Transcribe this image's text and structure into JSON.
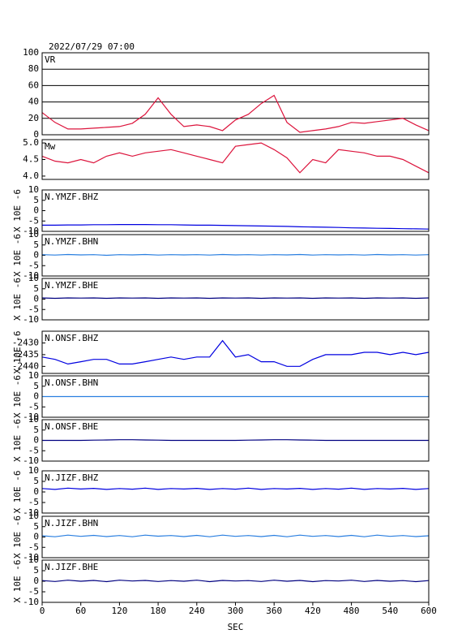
{
  "chart_data": [
    {
      "type": "line",
      "title": "2022/07/29 07:00",
      "label": "VR",
      "color": "#dc143c",
      "grid": true,
      "xlim": [
        0,
        600
      ],
      "x": [
        0,
        20,
        40,
        60,
        80,
        100,
        120,
        140,
        160,
        180,
        200,
        220,
        240,
        260,
        280,
        300,
        320,
        340,
        360,
        380,
        400,
        420,
        440,
        460,
        480,
        500,
        520,
        540,
        560,
        580,
        600
      ],
      "values": [
        27,
        15,
        7,
        7,
        8,
        9,
        10,
        14,
        25,
        45,
        25,
        10,
        12,
        10,
        5,
        18,
        25,
        38,
        48,
        15,
        3,
        5,
        7,
        10,
        15,
        14,
        16,
        18,
        20,
        12,
        5
      ],
      "ylim": [
        0,
        100
      ],
      "yticks": [
        0,
        20,
        40,
        60,
        80,
        100
      ]
    },
    {
      "type": "line",
      "label": "Mw",
      "color": "#dc143c",
      "xlim": [
        0,
        600
      ],
      "x": [
        0,
        20,
        40,
        60,
        80,
        100,
        120,
        140,
        160,
        180,
        200,
        220,
        240,
        260,
        280,
        300,
        320,
        340,
        360,
        380,
        400,
        420,
        440,
        460,
        480,
        500,
        520,
        540,
        560,
        580,
        600
      ],
      "values": [
        4.6,
        4.45,
        4.4,
        4.5,
        4.4,
        4.6,
        4.7,
        4.6,
        4.7,
        4.75,
        4.8,
        4.7,
        4.6,
        4.5,
        4.4,
        4.9,
        4.95,
        5.0,
        4.8,
        4.55,
        4.1,
        4.5,
        4.4,
        4.8,
        4.75,
        4.7,
        4.6,
        4.6,
        4.5,
        4.3,
        4.1
      ],
      "ylim": [
        3.9,
        5.1
      ],
      "yticks": [
        {
          "value": 4,
          "label": "4.0"
        },
        {
          "value": 4.5,
          "label": "4.5"
        },
        {
          "value": 5,
          "label": "5.0"
        }
      ]
    },
    {
      "type": "line",
      "label": "N.YMZF.BHZ",
      "ylabel": "X 10E -6",
      "color": "#0000e0",
      "xlim": [
        0,
        600
      ],
      "x": [
        0,
        20,
        40,
        60,
        80,
        100,
        120,
        140,
        160,
        180,
        200,
        220,
        240,
        260,
        280,
        300,
        320,
        340,
        360,
        380,
        400,
        420,
        440,
        460,
        480,
        500,
        520,
        540,
        560,
        580,
        600
      ],
      "values": [
        -7,
        -7,
        -6.9,
        -6.9,
        -6.8,
        -6.8,
        -6.7,
        -6.7,
        -6.7,
        -6.8,
        -6.8,
        -6.9,
        -7,
        -7,
        -7.1,
        -7.2,
        -7.3,
        -7.4,
        -7.5,
        -7.6,
        -7.8,
        -7.9,
        -8,
        -8.1,
        -8.3,
        -8.4,
        -8.5,
        -8.6,
        -8.7,
        -8.8,
        -8.9
      ],
      "ylim": [
        -10,
        10
      ],
      "yticks": [
        -10,
        -5,
        0,
        5,
        10
      ]
    },
    {
      "type": "line",
      "label": "N.YMZF.BHN",
      "ylabel": "X 10E -6",
      "color": "#2a7fe0",
      "xlim": [
        0,
        600
      ],
      "x": [
        0,
        20,
        40,
        60,
        80,
        100,
        120,
        140,
        160,
        180,
        200,
        220,
        240,
        260,
        280,
        300,
        320,
        340,
        360,
        380,
        400,
        420,
        440,
        460,
        480,
        500,
        520,
        540,
        560,
        580,
        600
      ],
      "values": [
        0.3,
        0.1,
        0.4,
        0.2,
        0.3,
        0.0,
        0.3,
        0.2,
        0.4,
        0.1,
        0.3,
        0.2,
        0.3,
        0.1,
        0.4,
        0.2,
        0.3,
        0.1,
        0.3,
        0.2,
        0.4,
        0.1,
        0.3,
        0.2,
        0.3,
        0.1,
        0.4,
        0.2,
        0.3,
        0.1,
        0.3
      ],
      "ylim": [
        -10,
        10
      ],
      "yticks": [
        -10,
        -5,
        0,
        5,
        10
      ]
    },
    {
      "type": "line",
      "label": "N.YMZF.BHE",
      "ylabel": "X 10E -6",
      "color": "#000080",
      "xlim": [
        0,
        600
      ],
      "x": [
        0,
        20,
        40,
        60,
        80,
        100,
        120,
        140,
        160,
        180,
        200,
        220,
        240,
        260,
        280,
        300,
        320,
        340,
        360,
        380,
        400,
        420,
        440,
        460,
        480,
        500,
        520,
        540,
        560,
        580,
        600
      ],
      "values": [
        0.6,
        0.4,
        0.6,
        0.5,
        0.6,
        0.4,
        0.6,
        0.5,
        0.6,
        0.4,
        0.6,
        0.5,
        0.6,
        0.4,
        0.6,
        0.5,
        0.6,
        0.4,
        0.6,
        0.5,
        0.6,
        0.4,
        0.6,
        0.5,
        0.6,
        0.4,
        0.6,
        0.5,
        0.6,
        0.4,
        0.6
      ],
      "ylim": [
        -10,
        10
      ],
      "yticks": [
        -10,
        -5,
        0,
        5,
        10
      ]
    },
    {
      "type": "line",
      "label": "N.ONSF.BHZ",
      "ylabel": "X 10E -6",
      "color": "#0000e0",
      "xlim": [
        0,
        600
      ],
      "x": [
        0,
        20,
        40,
        60,
        80,
        100,
        120,
        140,
        160,
        180,
        200,
        220,
        240,
        260,
        280,
        300,
        320,
        340,
        360,
        380,
        400,
        420,
        440,
        460,
        480,
        500,
        520,
        540,
        560,
        580,
        600
      ],
      "values": [
        -2436,
        -2437,
        -2439,
        -2438,
        -2437,
        -2437,
        -2439,
        -2439,
        -2438,
        -2437,
        -2436,
        -2437,
        -2436,
        -2436,
        -2429,
        -2436,
        -2435,
        -2438,
        -2438,
        -2440,
        -2440,
        -2437,
        -2435,
        -2435,
        -2435,
        -2434,
        -2434,
        -2435,
        -2434,
        -2435,
        -2434
      ],
      "ylim": [
        -2443,
        -2425
      ],
      "yticks": [
        -2440,
        -2435,
        -2430
      ]
    },
    {
      "type": "line",
      "label": "N.ONSF.BHN",
      "ylabel": "X 10E -6",
      "color": "#2a7fe0",
      "xlim": [
        0,
        600
      ],
      "x": [
        0,
        20,
        40,
        60,
        80,
        100,
        120,
        140,
        160,
        180,
        200,
        220,
        240,
        260,
        280,
        300,
        320,
        340,
        360,
        380,
        400,
        420,
        440,
        460,
        480,
        500,
        520,
        540,
        560,
        580,
        600
      ],
      "values": [
        0,
        0,
        0,
        0,
        0,
        0,
        0,
        0,
        0,
        0,
        0,
        0,
        0,
        0,
        0,
        0,
        0,
        0,
        0,
        0,
        0,
        0,
        0,
        0,
        0,
        0,
        0,
        0,
        0,
        0,
        0
      ],
      "ylim": [
        -10,
        10
      ],
      "yticks": [
        -10,
        -5,
        0,
        5,
        10
      ]
    },
    {
      "type": "line",
      "label": "N.ONSF.BHE",
      "ylabel": "X 10E -6",
      "color": "#000080",
      "xlim": [
        0,
        600
      ],
      "x": [
        0,
        20,
        40,
        60,
        80,
        100,
        120,
        140,
        160,
        180,
        200,
        220,
        240,
        260,
        280,
        300,
        320,
        340,
        360,
        380,
        400,
        420,
        440,
        460,
        480,
        500,
        520,
        540,
        560,
        580,
        600
      ],
      "values": [
        0,
        0,
        0,
        0,
        0.1,
        0.2,
        0.3,
        0.3,
        0.2,
        0.1,
        0,
        0,
        0,
        0,
        0,
        0,
        0.1,
        0.2,
        0.3,
        0.3,
        0.2,
        0.1,
        0,
        0,
        0,
        0,
        0,
        0,
        0,
        0,
        0
      ],
      "ylim": [
        -10,
        10
      ],
      "yticks": [
        -10,
        -5,
        0,
        5,
        10
      ]
    },
    {
      "type": "line",
      "label": "N.JIZF.BHZ",
      "ylabel": "X 10E -6",
      "color": "#0000e0",
      "xlim": [
        0,
        600
      ],
      "x": [
        0,
        20,
        40,
        60,
        80,
        100,
        120,
        140,
        160,
        180,
        200,
        220,
        240,
        260,
        280,
        300,
        320,
        340,
        360,
        380,
        400,
        420,
        440,
        460,
        480,
        500,
        520,
        540,
        560,
        580,
        600
      ],
      "values": [
        1.6,
        1.2,
        1.8,
        1.4,
        1.7,
        1.2,
        1.6,
        1.3,
        1.8,
        1.2,
        1.6,
        1.4,
        1.7,
        1.2,
        1.6,
        1.3,
        1.8,
        1.2,
        1.6,
        1.4,
        1.7,
        1.2,
        1.6,
        1.3,
        1.8,
        1.2,
        1.6,
        1.4,
        1.7,
        1.2,
        1.6
      ],
      "ylim": [
        -10,
        10
      ],
      "yticks": [
        -10,
        -5,
        0,
        5,
        10
      ]
    },
    {
      "type": "line",
      "label": "N.JIZF.BHN",
      "ylabel": "X 10E -6",
      "color": "#2a7fe0",
      "xlim": [
        0,
        600
      ],
      "x": [
        0,
        20,
        40,
        60,
        80,
        100,
        120,
        140,
        160,
        180,
        200,
        220,
        240,
        260,
        280,
        300,
        320,
        340,
        360,
        380,
        400,
        420,
        440,
        460,
        480,
        500,
        520,
        540,
        560,
        580,
        600
      ],
      "values": [
        0.6,
        0.1,
        0.9,
        0.3,
        0.8,
        0.2,
        0.7,
        0.1,
        0.9,
        0.4,
        0.7,
        0.2,
        0.8,
        0.1,
        0.9,
        0.3,
        0.7,
        0.2,
        0.8,
        0.1,
        0.9,
        0.3,
        0.7,
        0.2,
        0.8,
        0.1,
        0.9,
        0.3,
        0.7,
        0.2,
        0.6
      ],
      "ylim": [
        -10,
        10
      ],
      "yticks": [
        -10,
        -5,
        0,
        5,
        10
      ]
    },
    {
      "type": "line",
      "label": "N.JIZF.BHE",
      "ylabel": "X 10E -6",
      "color": "#000080",
      "xlim": [
        0,
        600
      ],
      "x": [
        0,
        20,
        40,
        60,
        80,
        100,
        120,
        140,
        160,
        180,
        200,
        220,
        240,
        260,
        280,
        300,
        320,
        340,
        360,
        380,
        400,
        420,
        440,
        460,
        480,
        500,
        520,
        540,
        560,
        580,
        600
      ],
      "values": [
        0.3,
        -0.1,
        0.5,
        0.0,
        0.4,
        -0.2,
        0.5,
        0.1,
        0.4,
        -0.1,
        0.3,
        0.0,
        0.5,
        -0.2,
        0.4,
        0.1,
        0.3,
        -0.1,
        0.5,
        0.0,
        0.4,
        -0.2,
        0.3,
        0.1,
        0.5,
        -0.1,
        0.4,
        0.0,
        0.3,
        -0.2,
        0.3
      ],
      "ylim": [
        -10,
        10
      ],
      "yticks": [
        -10,
        -5,
        0,
        5,
        10
      ],
      "xticks": [
        0,
        60,
        120,
        180,
        240,
        300,
        360,
        420,
        480,
        540,
        600
      ],
      "xlabel": "SEC"
    }
  ]
}
